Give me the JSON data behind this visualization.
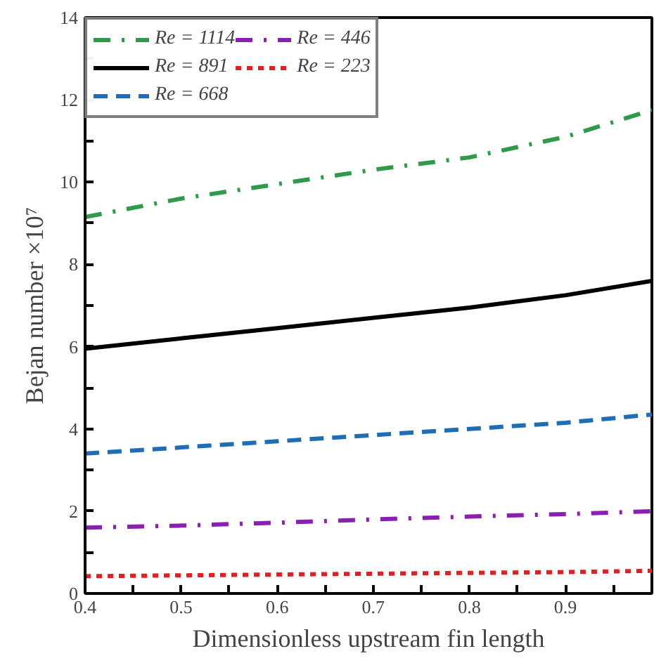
{
  "chart_data": {
    "type": "line",
    "xlabel": "Dimensionless upstream fin length",
    "ylabel": "Bejan number ×10⁷",
    "x": [
      0.4,
      0.5,
      0.6,
      0.7,
      0.8,
      0.9,
      0.99
    ],
    "series": [
      {
        "name": "Re = 1114",
        "color": "#2e9a4a",
        "line_style": "dashdot",
        "values": [
          9.15,
          9.6,
          9.95,
          10.3,
          10.6,
          11.1,
          11.75
        ]
      },
      {
        "name": "Re = 891",
        "color": "#000000",
        "line_style": "solid",
        "values": [
          5.95,
          6.2,
          6.45,
          6.7,
          6.95,
          7.25,
          7.6
        ]
      },
      {
        "name": "Re = 668",
        "color": "#1f6db5",
        "line_style": "dashed",
        "values": [
          3.4,
          3.55,
          3.7,
          3.85,
          4.0,
          4.15,
          4.35
        ]
      },
      {
        "name": "Re = 446",
        "color": "#8a1fb0",
        "line_style": "dashdot",
        "values": [
          1.6,
          1.65,
          1.72,
          1.8,
          1.87,
          1.93,
          2.0
        ]
      },
      {
        "name": "Re = 223",
        "color": "#e02020",
        "line_style": "dotted",
        "values": [
          0.42,
          0.44,
          0.46,
          0.48,
          0.5,
          0.52,
          0.55
        ]
      }
    ],
    "xlim": [
      0.4,
      0.99
    ],
    "ylim": [
      0,
      14
    ],
    "xticks": [
      0.4,
      {
        "value": 0.45,
        "label": null
      },
      0.5,
      {
        "value": 0.55,
        "label": null
      },
      0.6,
      {
        "value": 0.65,
        "label": null
      },
      0.7,
      {
        "value": 0.75,
        "label": null
      },
      0.8,
      {
        "value": 0.85,
        "label": null
      },
      0.9,
      {
        "value": 0.95,
        "label": null
      }
    ],
    "yticks": [
      0,
      {
        "value": 1,
        "label": null
      },
      2,
      {
        "value": 3,
        "label": null
      },
      4,
      {
        "value": 5,
        "label": null
      },
      6,
      {
        "value": 7,
        "label": null
      },
      8,
      {
        "value": 9,
        "label": null
      },
      10,
      {
        "value": 11,
        "label": null
      },
      12,
      {
        "value": 13,
        "label": null
      },
      14
    ],
    "grid": false,
    "legend": "top left",
    "marker": "none"
  }
}
